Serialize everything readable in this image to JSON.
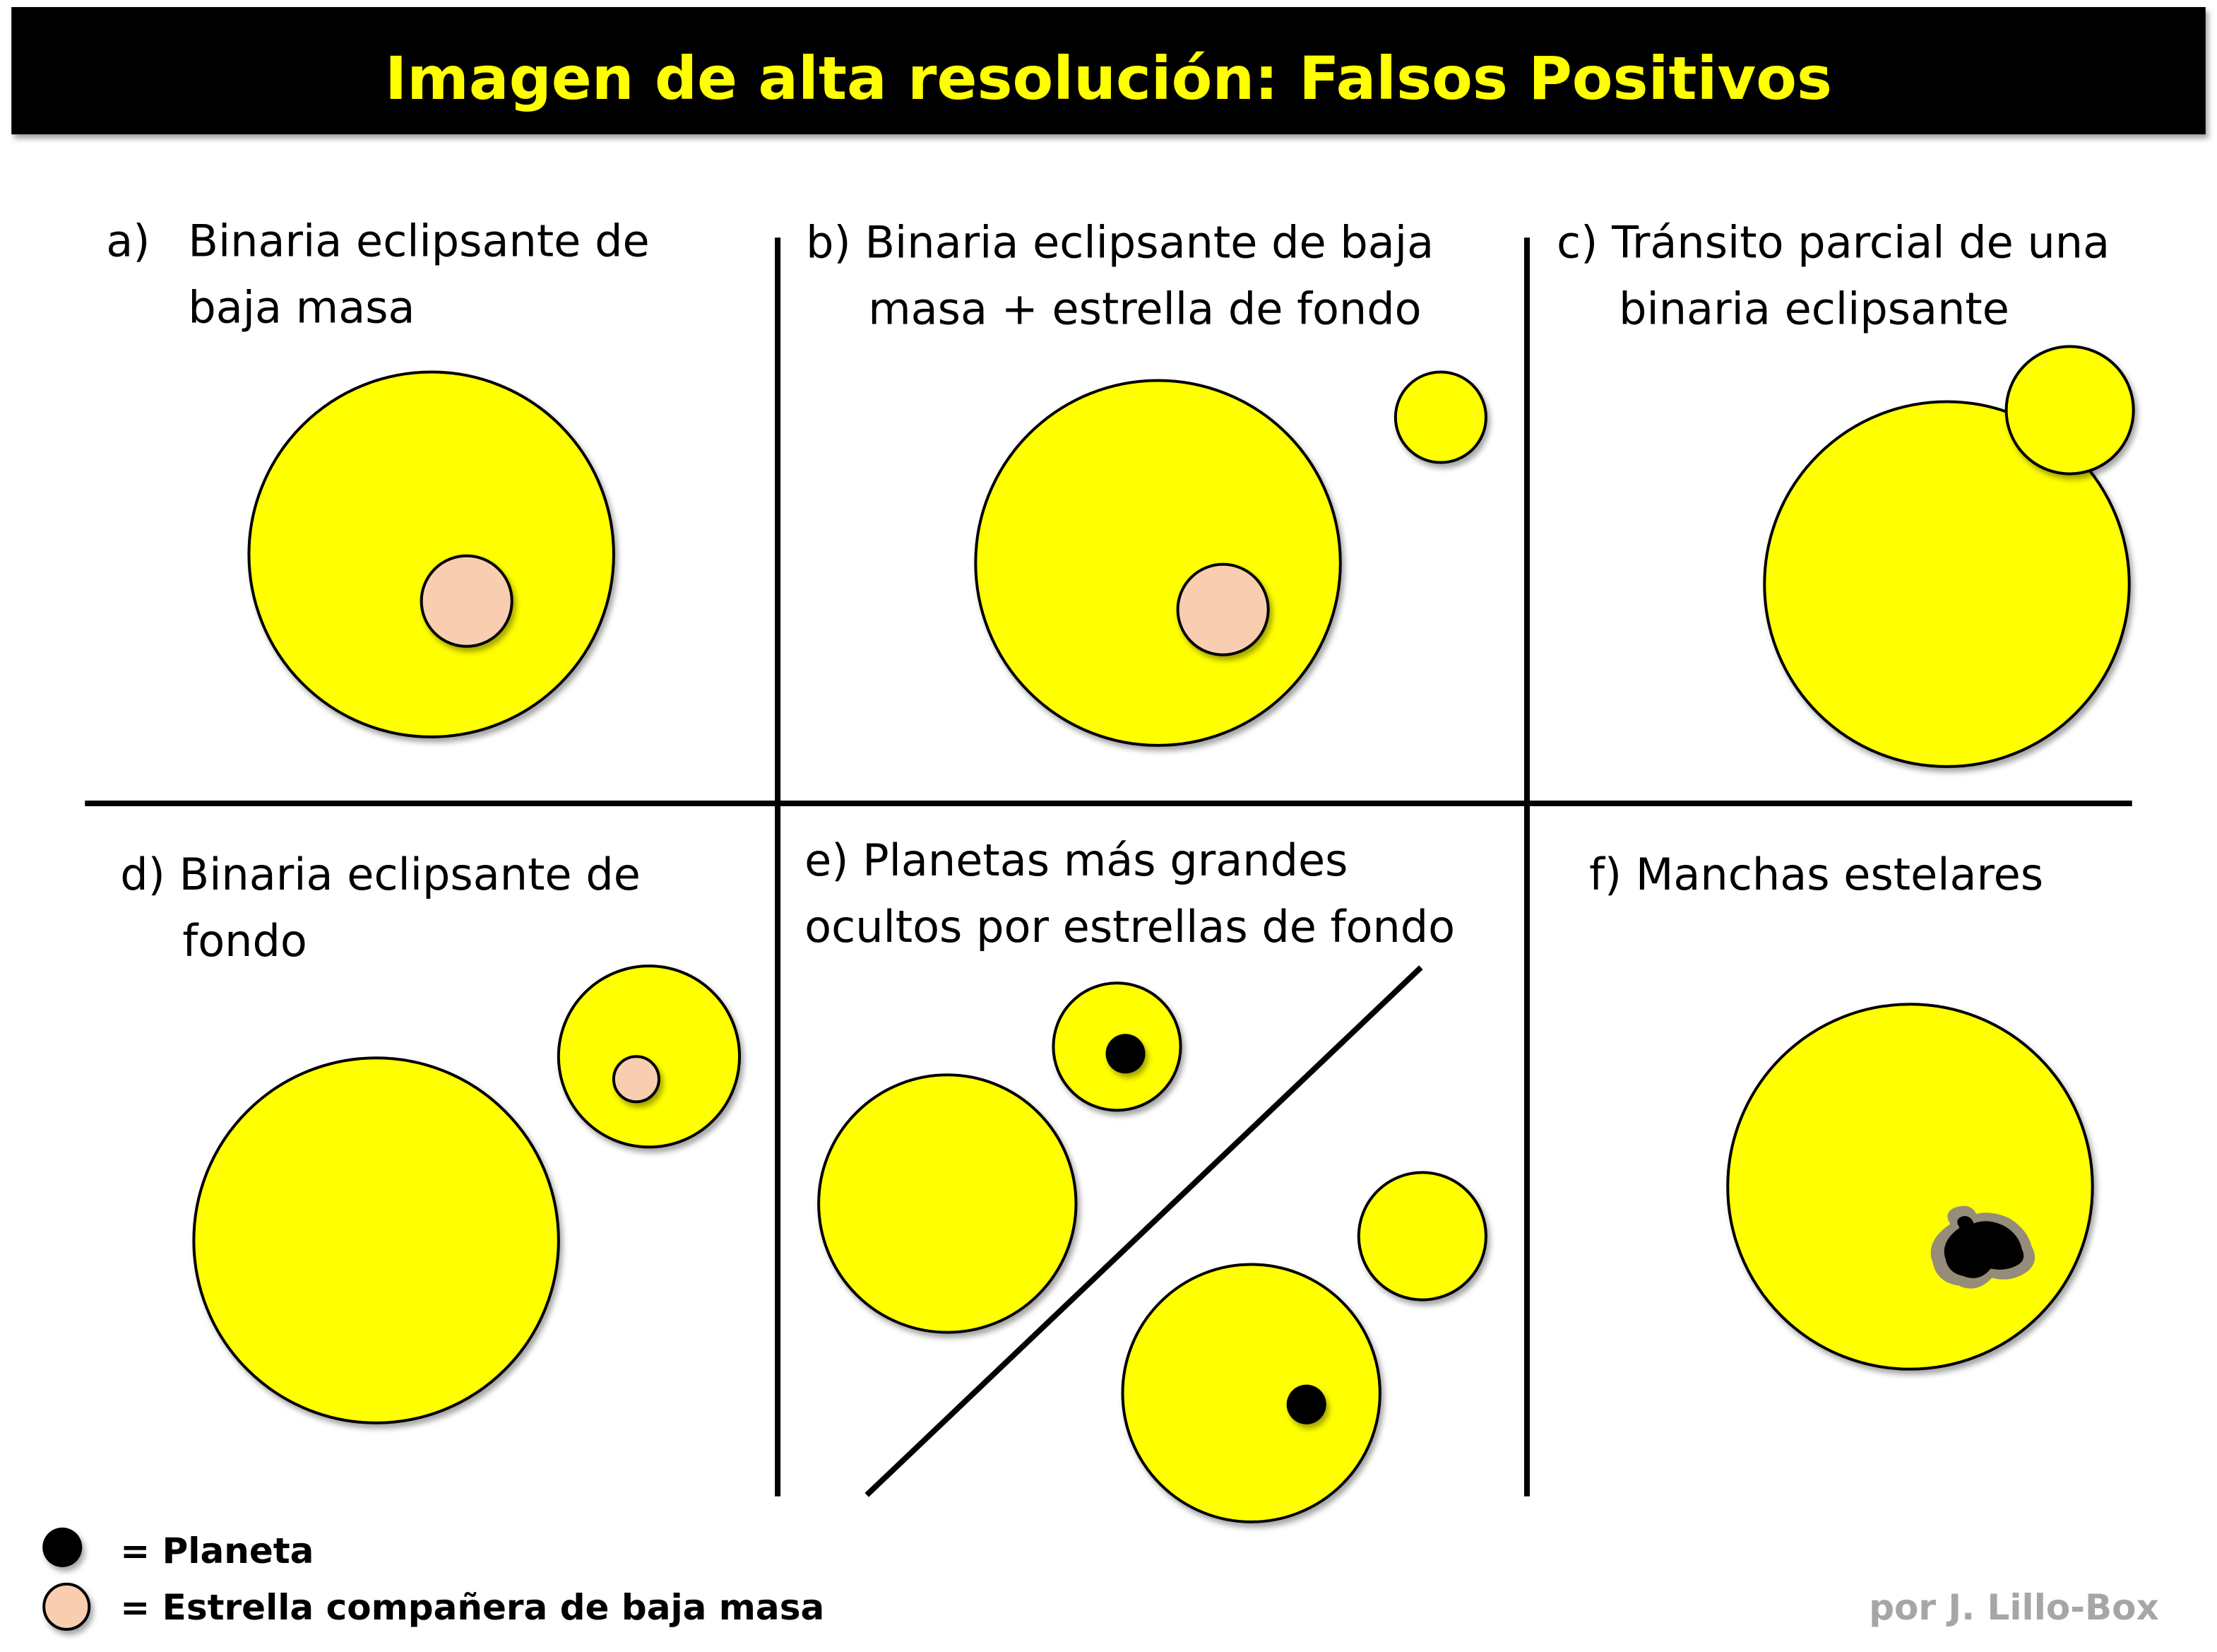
{
  "title": "Imagen de alta resolución: Falsos Positivos",
  "colors": {
    "title_bg": "#000000",
    "title_text": "#ffff00",
    "star": "#ffff00",
    "companion": "#f9cdb0",
    "planet": "#000000",
    "spot_penumbra": "#958c7a",
    "credit": "#a6a6a6"
  },
  "panels": [
    {
      "letter": "a)",
      "line1": "Binaria eclipsante de",
      "line2": "baja masa"
    },
    {
      "letter": "b)",
      "line1": "Binaria eclipsante de baja",
      "line2": "masa + estrella de fondo"
    },
    {
      "letter": "c)",
      "line1": "Tránsito parcial de una",
      "line2": "binaria eclipsante"
    },
    {
      "letter": "d)",
      "line1": "Binaria eclipsante de",
      "line2": "fondo"
    },
    {
      "letter": "e)",
      "line1": "Planetas más grandes",
      "line2": "ocultos por estrellas de fondo"
    },
    {
      "letter": "f)",
      "line1": "Manchas estelares",
      "line2": ""
    }
  ],
  "legend": {
    "planet": "= Planeta",
    "companion": "= Estrella compañera de baja masa"
  },
  "credit": "por J. Lillo-Box"
}
